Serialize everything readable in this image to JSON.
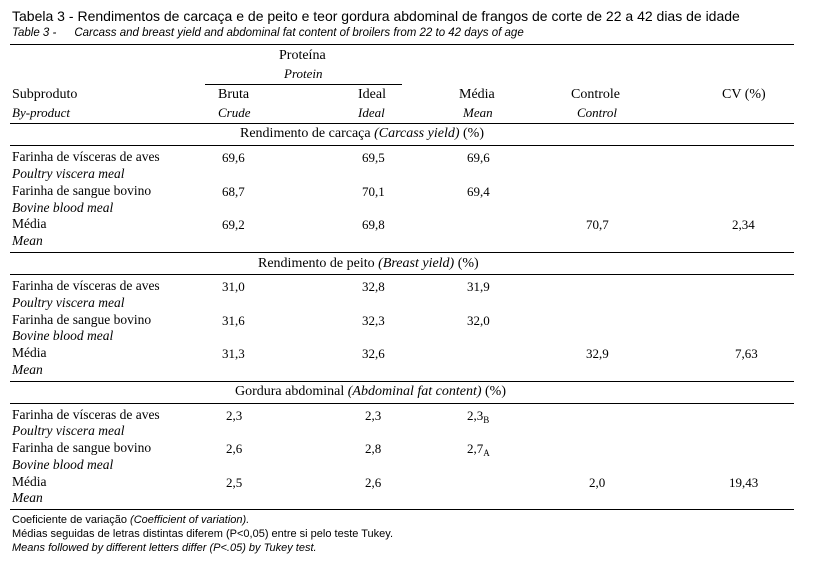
{
  "title": {
    "pt_label": "Tabela 3 -",
    "pt_text": "Rendimentos de carcaça e de peito e teor gordura abdominal de frangos de corte de 22 a 42 dias de idade",
    "en_label": "Table 3 -",
    "en_text": "Carcass and breast yield and abdominal fat content of broilers from 22 to 42 days of age"
  },
  "header": {
    "group": "Proteína",
    "group_en": "Protein",
    "col_subproduto": "Subproduto",
    "col_subproduto_en": "By-product",
    "col_bruta": "Bruta",
    "col_bruta_en": "Crude",
    "col_ideal": "Ideal",
    "col_ideal_en": "Ideal",
    "col_media": "Média",
    "col_media_en": "Mean",
    "col_controle": "Controle",
    "col_controle_en": "Control",
    "col_cv": "CV (%)"
  },
  "sections": [
    {
      "title_pt": "Rendimento de carcaça",
      "title_en": "(Carcass yield)",
      "unit": "(%)",
      "rows": [
        {
          "label": "Farinha de vísceras de aves",
          "label_en": "Poultry viscera meal",
          "bruta": "69,6",
          "ideal": "69,5",
          "media": "69,6",
          "media_sub": "",
          "controle": "",
          "cv": ""
        },
        {
          "label": "Farinha de sangue bovino",
          "label_en": "Bovine blood meal",
          "bruta": "68,7",
          "ideal": "70,1",
          "media": "69,4",
          "media_sub": "",
          "controle": "",
          "cv": ""
        },
        {
          "label": "Média",
          "label_en": "Mean",
          "bruta": "69,2",
          "ideal": "69,8",
          "media": "",
          "media_sub": "",
          "controle": "70,7",
          "cv": "2,34"
        }
      ]
    },
    {
      "title_pt": "Rendimento de peito",
      "title_en": "(Breast yield)",
      "unit": "(%)",
      "rows": [
        {
          "label": "Farinha de vísceras de aves",
          "label_en": "Poultry viscera meal",
          "bruta": "31,0",
          "ideal": "32,8",
          "media": "31,9",
          "media_sub": "",
          "controle": "",
          "cv": ""
        },
        {
          "label": "Farinha de sangue bovino",
          "label_en": "Bovine blood meal",
          "bruta": "31,6",
          "ideal": "32,3",
          "media": "32,0",
          "media_sub": "",
          "controle": "",
          "cv": ""
        },
        {
          "label": "Média",
          "label_en": "Mean",
          "bruta": "31,3",
          "ideal": "32,6",
          "media": "",
          "media_sub": "",
          "controle": "32,9",
          "cv": "7,63"
        }
      ]
    },
    {
      "title_pt": "Gordura abdominal",
      "title_en": "(Abdominal fat content)",
      "unit": "(%)",
      "rows": [
        {
          "label": "Farinha de vísceras de aves",
          "label_en": "Poultry viscera meal",
          "bruta": "2,3",
          "ideal": "2,3",
          "media": "2,3",
          "media_sub": "B",
          "controle": "",
          "cv": ""
        },
        {
          "label": "Farinha de sangue bovino",
          "label_en": "Bovine blood meal",
          "bruta": "2,6",
          "ideal": "2,8",
          "media": "2,7",
          "media_sub": "A",
          "controle": "",
          "cv": ""
        },
        {
          "label": "Média",
          "label_en": "Mean",
          "bruta": "2,5",
          "ideal": "2,6",
          "media": "",
          "media_sub": "",
          "controle": "2,0",
          "cv": "19,43"
        }
      ]
    }
  ],
  "footnotes": {
    "cv_pt": "Coeficiente de variação",
    "cv_en": "(Coefficient of variation).",
    "tukey_pt": "Médias seguidas de letras distintas diferem (P<0,05) entre si pelo teste Tukey.",
    "tukey_en": "Means followed by different letters differ (P<.05) by Tukey test."
  }
}
